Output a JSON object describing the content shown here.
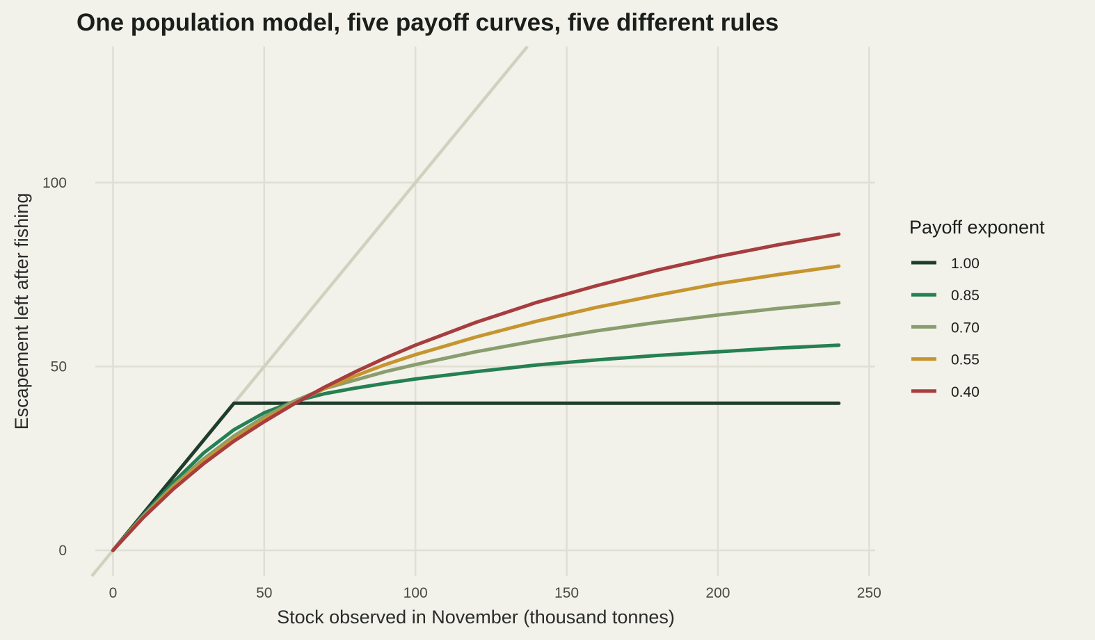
{
  "chart_data": {
    "type": "line",
    "title": "One population model, five payoff curves, five different rules",
    "xlabel": "Stock observed in November (thousand tonnes)",
    "ylabel": "Escapement left after fishing",
    "xlim": [
      -7,
      252
    ],
    "ylim": [
      -7,
      137
    ],
    "xticks": [
      0,
      50,
      100,
      150,
      200,
      250
    ],
    "yticks": [
      0,
      50,
      100
    ],
    "grid": true,
    "legend": {
      "title": "Payoff exponent",
      "placement": "right"
    },
    "reference_line": {
      "type": "identity",
      "slope": 1,
      "intercept": 0,
      "color": "#d0d1bf"
    },
    "x": [
      0,
      10,
      20,
      30,
      40,
      50,
      60,
      70,
      80,
      90,
      100,
      120,
      140,
      160,
      180,
      200,
      220,
      240
    ],
    "series": [
      {
        "name": "1.00",
        "color": "#1f3d2b",
        "values": [
          0,
          10,
          20,
          30,
          40,
          40,
          40,
          40,
          40,
          40,
          40,
          40,
          40,
          40,
          40,
          40,
          40,
          40
        ]
      },
      {
        "name": "0.85",
        "color": "#258052",
        "values": [
          0,
          9.6,
          18.5,
          26.5,
          32.8,
          37.4,
          40.5,
          42.6,
          44.1,
          45.4,
          46.6,
          48.6,
          50.4,
          51.8,
          53.0,
          54.0,
          55.0,
          55.8
        ]
      },
      {
        "name": "0.70",
        "color": "#8a9d6e",
        "values": [
          0,
          9.3,
          17.6,
          24.9,
          31.1,
          36.3,
          40.6,
          44.0,
          46.3,
          48.6,
          50.5,
          54.0,
          57.0,
          59.7,
          62.0,
          64.0,
          65.8,
          67.3
        ]
      },
      {
        "name": "0.55",
        "color": "#c6952f",
        "values": [
          0,
          9.1,
          17.2,
          24.3,
          30.3,
          35.6,
          40.1,
          44.0,
          47.4,
          50.5,
          53.2,
          58.0,
          62.3,
          66.1,
          69.4,
          72.5,
          75.0,
          77.3
        ]
      },
      {
        "name": "0.40",
        "color": "#a63d3e",
        "values": [
          0,
          8.9,
          16.7,
          23.6,
          29.7,
          35.0,
          39.9,
          44.4,
          48.5,
          52.3,
          55.8,
          62.0,
          67.4,
          72.0,
          76.2,
          79.9,
          83.1,
          86.0
        ]
      }
    ]
  }
}
